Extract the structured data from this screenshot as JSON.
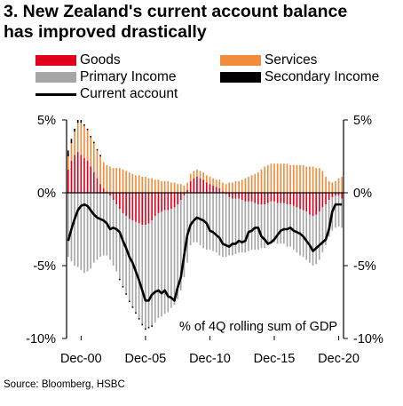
{
  "title_lines": [
    "3. New Zealand's current account balance",
    "has improved drastically"
  ],
  "source": "Source: Bloomberg, HSBC",
  "chart_data": {
    "type": "bar",
    "stacked": true,
    "annotation": "% of 4Q rolling sum of GDP",
    "ylim": [
      -10,
      5
    ],
    "y_ticks": [
      5,
      0,
      -5,
      -10
    ],
    "y_tick_labels": [
      "5%",
      "0%",
      "-5%",
      "-10%"
    ],
    "x_tick_labels": [
      "Dec-00",
      "Dec-05",
      "Dec-10",
      "Dec-15",
      "Dec-20"
    ],
    "colors": {
      "Goods": "#e0001b",
      "Services": "#f28c3c",
      "Primary Income": "#a6a6a6",
      "Secondary Income": "#000000",
      "Current account": "#000000"
    },
    "legend": [
      "Goods",
      "Services",
      "Primary Income",
      "Secondary Income",
      "Current account"
    ],
    "x": [
      "Dec-99",
      "Mar-00",
      "Jun-00",
      "Sep-00",
      "Dec-00",
      "Mar-01",
      "Jun-01",
      "Sep-01",
      "Dec-01",
      "Mar-02",
      "Jun-02",
      "Sep-02",
      "Dec-02",
      "Mar-03",
      "Jun-03",
      "Sep-03",
      "Dec-03",
      "Mar-04",
      "Jun-04",
      "Sep-04",
      "Dec-04",
      "Mar-05",
      "Jun-05",
      "Sep-05",
      "Dec-05",
      "Mar-06",
      "Jun-06",
      "Sep-06",
      "Dec-06",
      "Mar-07",
      "Jun-07",
      "Sep-07",
      "Dec-07",
      "Mar-08",
      "Jun-08",
      "Sep-08",
      "Dec-08",
      "Mar-09",
      "Jun-09",
      "Sep-09",
      "Dec-09",
      "Mar-10",
      "Jun-10",
      "Sep-10",
      "Dec-10",
      "Mar-11",
      "Jun-11",
      "Sep-11",
      "Dec-11",
      "Mar-12",
      "Jun-12",
      "Sep-12",
      "Dec-12",
      "Mar-13",
      "Jun-13",
      "Sep-13",
      "Dec-13",
      "Mar-14",
      "Jun-14",
      "Sep-14",
      "Dec-14",
      "Mar-15",
      "Jun-15",
      "Sep-15",
      "Dec-15",
      "Mar-16",
      "Jun-16",
      "Sep-16",
      "Dec-16",
      "Mar-17",
      "Jun-17",
      "Sep-17",
      "Dec-17",
      "Mar-18",
      "Jun-18",
      "Sep-18",
      "Dec-18",
      "Mar-19",
      "Jun-19",
      "Sep-19",
      "Dec-19",
      "Mar-20",
      "Jun-20",
      "Sep-20",
      "Dec-20",
      "Mar-21"
    ],
    "series": [
      {
        "name": "Goods",
        "values": [
          1.6,
          2.2,
          2.6,
          2.8,
          2.6,
          2.4,
          2.2,
          1.8,
          1.4,
          1.0,
          0.6,
          0.3,
          0.1,
          -0.2,
          -0.5,
          -0.8,
          -1.1,
          -1.4,
          -1.6,
          -1.8,
          -1.9,
          -2.0,
          -2.1,
          -2.2,
          -2.2,
          -2.1,
          -1.9,
          -1.6,
          -1.4,
          -1.3,
          -1.2,
          -1.2,
          -1.1,
          -1.0,
          -0.8,
          -0.5,
          -0.2,
          0.2,
          0.8,
          1.0,
          1.1,
          1.0,
          0.9,
          0.7,
          0.6,
          0.5,
          0.4,
          0.3,
          0.1,
          -0.1,
          -0.3,
          -0.4,
          -0.4,
          -0.4,
          -0.5,
          -0.6,
          -0.6,
          -0.6,
          -0.7,
          -0.8,
          -0.8,
          -0.8,
          -0.7,
          -0.6,
          -0.6,
          -0.7,
          -0.7,
          -0.7,
          -0.8,
          -0.8,
          -0.9,
          -1.0,
          -1.1,
          -1.2,
          -1.3,
          -1.5,
          -1.6,
          -1.5,
          -1.3,
          -1.0,
          -0.8,
          -0.5,
          -0.3,
          -0.2,
          -0.2,
          -0.4
        ]
      },
      {
        "name": "Services",
        "values": [
          0.9,
          1.2,
          1.6,
          2.0,
          2.2,
          2.2,
          2.1,
          2.0,
          2.0,
          1.9,
          1.9,
          1.8,
          1.8,
          1.8,
          1.7,
          1.7,
          1.7,
          1.6,
          1.5,
          1.4,
          1.3,
          1.2,
          1.2,
          1.1,
          1.1,
          1.0,
          1.0,
          0.9,
          0.9,
          0.8,
          0.8,
          0.8,
          0.7,
          0.7,
          0.6,
          0.6,
          0.5,
          0.5,
          0.5,
          0.5,
          0.5,
          0.5,
          0.5,
          0.5,
          0.5,
          0.5,
          0.5,
          0.6,
          0.6,
          0.6,
          0.7,
          0.7,
          0.8,
          0.8,
          0.9,
          1.0,
          1.1,
          1.2,
          1.3,
          1.4,
          1.6,
          1.8,
          1.9,
          2.0,
          2.0,
          2.0,
          2.0,
          2.0,
          2.0,
          1.9,
          1.9,
          1.9,
          1.9,
          1.9,
          1.8,
          1.8,
          1.8,
          1.7,
          1.7,
          1.5,
          1.1,
          0.8,
          0.7,
          0.8,
          1.0,
          1.1
        ]
      },
      {
        "name": "Primary Income",
        "values": [
          -4.4,
          -4.7,
          -5.0,
          -5.1,
          -5.3,
          -5.5,
          -5.4,
          -5.2,
          -4.8,
          -4.6,
          -4.4,
          -4.3,
          -4.3,
          -4.4,
          -4.5,
          -4.6,
          -4.8,
          -5.0,
          -5.3,
          -5.6,
          -5.9,
          -6.2,
          -6.5,
          -6.8,
          -7.1,
          -7.1,
          -7.2,
          -7.3,
          -7.2,
          -7.2,
          -7.1,
          -7.0,
          -6.8,
          -6.7,
          -6.5,
          -6.2,
          -5.6,
          -4.8,
          -3.6,
          -3.4,
          -3.4,
          -3.6,
          -3.8,
          -3.9,
          -3.9,
          -4.0,
          -4.1,
          -4.3,
          -4.4,
          -4.3,
          -4.0,
          -3.9,
          -3.8,
          -3.7,
          -3.6,
          -3.5,
          -3.4,
          -3.3,
          -3.2,
          -3.1,
          -3.0,
          -3.0,
          -2.9,
          -2.9,
          -2.8,
          -2.8,
          -2.8,
          -2.8,
          -2.9,
          -2.9,
          -3.0,
          -3.1,
          -3.2,
          -3.2,
          -3.3,
          -3.3,
          -3.4,
          -3.4,
          -3.3,
          -3.1,
          -2.8,
          -2.5,
          -2.3,
          -2.2,
          -2.1,
          -2.0
        ]
      },
      {
        "name": "Secondary Income",
        "values": [
          0.4,
          0.3,
          0.2,
          0.2,
          0.2,
          0.1,
          0.1,
          0.1,
          0.1,
          0.1,
          0.1,
          0.0,
          0.0,
          0.0,
          0.0,
          0.0,
          -0.1,
          -0.1,
          -0.1,
          -0.1,
          -0.1,
          -0.1,
          -0.1,
          -0.1,
          -0.1,
          -0.1,
          -0.1,
          0.0,
          0.0,
          0.0,
          0.0,
          0.0,
          0.0,
          0.0,
          0.0,
          0.0,
          0.0,
          0.0,
          0.0,
          0.0,
          0.0,
          0.0,
          0.0,
          0.0,
          0.0,
          0.0,
          0.0,
          0.0,
          0.0,
          0.0,
          0.0,
          0.0,
          0.0,
          0.0,
          0.0,
          0.0,
          0.0,
          0.0,
          0.0,
          0.0,
          0.0,
          0.0,
          0.0,
          0.0,
          0.0,
          0.0,
          0.0,
          0.0,
          0.0,
          0.0,
          0.0,
          0.0,
          0.0,
          0.0,
          0.0,
          0.0,
          0.0,
          0.0,
          0.0,
          0.0,
          0.0,
          0.0,
          0.0,
          0.0,
          0.0,
          0.0
        ]
      },
      {
        "name": "Current account",
        "type": "line",
        "values": [
          -3.3,
          -2.5,
          -1.8,
          -1.2,
          -0.9,
          -0.8,
          -0.9,
          -1.2,
          -1.5,
          -1.7,
          -1.8,
          -1.9,
          -2.1,
          -2.5,
          -2.4,
          -2.5,
          -2.7,
          -3.3,
          -3.8,
          -4.4,
          -4.8,
          -5.4,
          -6.0,
          -6.7,
          -7.4,
          -7.4,
          -7.0,
          -6.8,
          -6.7,
          -6.9,
          -6.7,
          -7.1,
          -7.2,
          -7.4,
          -6.5,
          -5.8,
          -4.3,
          -2.9,
          -2.2,
          -1.9,
          -1.7,
          -1.8,
          -1.9,
          -2.1,
          -2.6,
          -2.7,
          -2.9,
          -3.1,
          -3.5,
          -3.6,
          -3.7,
          -3.5,
          -3.5,
          -3.3,
          -3.4,
          -3.3,
          -2.7,
          -2.6,
          -2.4,
          -2.4,
          -3.0,
          -3.2,
          -3.5,
          -3.4,
          -3.2,
          -2.9,
          -2.6,
          -2.5,
          -2.5,
          -2.4,
          -2.6,
          -2.7,
          -2.8,
          -3.0,
          -3.3,
          -3.6,
          -4.0,
          -3.8,
          -3.6,
          -3.4,
          -3.2,
          -2.5,
          -1.3,
          -0.8,
          -0.8,
          -0.8
        ]
      }
    ]
  }
}
